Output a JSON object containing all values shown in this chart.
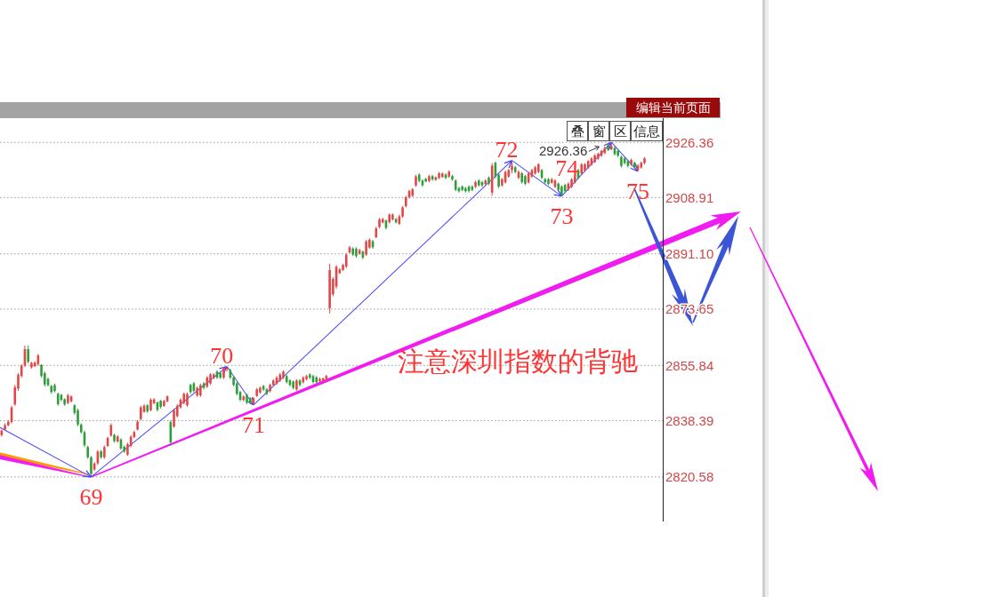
{
  "chart_data": {
    "type": "candlestick",
    "categories": [
      null,
      null,
      null,
      null,
      null,
      null,
      null,
      null,
      null,
      null,
      null,
      null,
      null,
      null,
      null,
      null,
      null,
      null,
      null,
      null,
      null,
      null,
      null,
      null,
      null,
      null,
      null,
      null,
      null,
      null,
      null,
      null,
      null,
      null,
      null,
      null,
      null,
      null,
      null,
      null,
      null,
      null,
      null,
      null,
      null,
      null,
      null,
      null,
      null,
      null,
      null,
      null,
      null,
      null,
      null,
      null,
      null,
      null,
      null,
      null,
      null,
      null,
      null,
      null,
      null,
      null,
      null,
      null,
      null,
      null,
      null,
      null,
      null,
      null,
      null,
      null,
      null,
      null,
      null,
      null,
      null,
      null,
      null,
      null,
      null,
      null,
      null,
      null,
      null,
      null,
      null,
      null,
      null,
      null,
      null,
      null,
      null,
      null,
      null,
      null,
      null,
      null,
      null,
      null,
      null,
      null,
      null,
      null,
      null,
      null,
      null,
      null,
      null,
      null,
      null,
      null,
      null,
      null,
      null,
      null,
      null,
      null,
      null,
      null,
      null,
      null,
      null,
      null,
      null,
      null,
      null,
      null,
      null,
      null,
      null,
      null,
      null,
      null,
      null,
      null,
      null,
      null,
      null,
      null,
      null,
      null,
      null,
      null,
      null,
      null,
      null,
      null,
      null,
      null,
      null,
      null,
      null,
      null,
      null,
      null,
      null,
      null,
      null,
      null,
      null,
      null,
      null,
      null,
      null,
      null,
      null,
      null,
      null,
      null,
      null,
      null,
      null,
      null,
      null,
      null,
      null,
      null,
      null,
      null,
      null,
      null,
      null,
      null,
      null,
      null,
      null,
      null,
      null,
      null,
      null,
      null,
      null,
      null,
      null,
      null
    ],
    "ohlc": [
      [
        2833.8,
        2835.6,
        2833.3,
        2835.2
      ],
      [
        2835.6,
        2837.5,
        2835.2,
        2837.0
      ],
      [
        2836.9,
        2838.5,
        2836.6,
        2838.0
      ],
      [
        2837.9,
        2843.1,
        2837.5,
        2842.6
      ],
      [
        2843.5,
        2849.7,
        2843.1,
        2849.0
      ],
      [
        2848.5,
        2853.4,
        2847.8,
        2852.9
      ],
      [
        2852.5,
        2856.2,
        2852.0,
        2855.8
      ],
      [
        2855.8,
        2862.1,
        2855.3,
        2861.0
      ],
      [
        2861.0,
        2862.1,
        2856.5,
        2857.0
      ],
      [
        2855.2,
        2857.0,
        2854.8,
        2856.6
      ],
      [
        2855.6,
        2857.2,
        2855.3,
        2856.8
      ],
      [
        2856.2,
        2859.5,
        2855.7,
        2859.0
      ],
      [
        2856.0,
        2856.2,
        2852.0,
        2852.5
      ],
      [
        2853.4,
        2853.9,
        2849.2,
        2849.8
      ],
      [
        2851.6,
        2852.0,
        2849.2,
        2849.6
      ],
      [
        2849.3,
        2849.7,
        2846.9,
        2847.4
      ],
      [
        2849.6,
        2850.1,
        2847.3,
        2847.8
      ],
      [
        2846.9,
        2847.3,
        2843.1,
        2843.6
      ],
      [
        2846.5,
        2846.9,
        2844.5,
        2845.0
      ],
      [
        2845.1,
        2845.5,
        2843.1,
        2843.5
      ],
      [
        2844.0,
        2846.9,
        2843.6,
        2846.4
      ],
      [
        2844.5,
        2846.4,
        2844.1,
        2846.0
      ],
      [
        2843.2,
        2843.6,
        2840.3,
        2840.8
      ],
      [
        2841.7,
        2842.2,
        2836.6,
        2837.2
      ],
      [
        2837.1,
        2837.5,
        2834.2,
        2834.7
      ],
      [
        2834.7,
        2835.2,
        2830.0,
        2830.6
      ],
      [
        2830.0,
        2830.5,
        2826.3,
        2826.8
      ],
      [
        2826.8,
        2827.2,
        2820.58,
        2821.5
      ],
      [
        2822.9,
        2825.3,
        2822.5,
        2824.8
      ],
      [
        2824.9,
        2829.1,
        2824.4,
        2828.6
      ],
      [
        2828.7,
        2829.1,
        2826.3,
        2826.8
      ],
      [
        2826.8,
        2830.5,
        2826.3,
        2830.0
      ],
      [
        2830.4,
        2833.3,
        2830.0,
        2832.9
      ],
      [
        2833.7,
        2837.5,
        2833.3,
        2837.0
      ],
      [
        2833.9,
        2834.2,
        2831.4,
        2831.9
      ],
      [
        2831.8,
        2833.8,
        2831.4,
        2833.4
      ],
      [
        2832.4,
        2832.8,
        2829.1,
        2829.6
      ],
      [
        2830.1,
        2830.5,
        2828.2,
        2828.6
      ],
      [
        2827.6,
        2831.4,
        2827.2,
        2830.9
      ],
      [
        2830.4,
        2833.8,
        2830.0,
        2833.3
      ],
      [
        2833.2,
        2835.2,
        2832.8,
        2834.8
      ],
      [
        2835.6,
        2838.5,
        2835.2,
        2838.0
      ],
      [
        2838.9,
        2843.1,
        2838.5,
        2842.6
      ],
      [
        2841.2,
        2843.6,
        2840.8,
        2843.1
      ],
      [
        2843.2,
        2843.6,
        2840.8,
        2841.3
      ],
      [
        2841.7,
        2845.5,
        2841.3,
        2845.0
      ],
      [
        2843.9,
        2845.5,
        2843.6,
        2845.1
      ],
      [
        2844.1,
        2844.5,
        2841.3,
        2841.8
      ],
      [
        2844.6,
        2845.0,
        2842.2,
        2842.7
      ],
      [
        2843.0,
        2845.0,
        2842.7,
        2844.6
      ],
      [
        2844.5,
        2846.4,
        2844.1,
        2846.0
      ],
      [
        2837.9,
        2838.5,
        2830.4,
        2831.5
      ],
      [
        2836.5,
        2842.2,
        2836.1,
        2841.7
      ],
      [
        2839.8,
        2843.6,
        2839.4,
        2843.1
      ],
      [
        2842.6,
        2845.5,
        2842.2,
        2845.0
      ],
      [
        2844.0,
        2847.3,
        2843.6,
        2846.9
      ],
      [
        2843.2,
        2847.3,
        2842.7,
        2846.8
      ],
      [
        2849.7,
        2850.1,
        2846.9,
        2847.4
      ],
      [
        2850.2,
        2850.6,
        2847.3,
        2847.8
      ],
      [
        2846.3,
        2849.2,
        2845.9,
        2848.8
      ],
      [
        2846.4,
        2850.1,
        2845.9,
        2849.6
      ],
      [
        2850.2,
        2850.6,
        2848.3,
        2848.8
      ],
      [
        2849.1,
        2852.5,
        2848.7,
        2852.0
      ],
      [
        2850.1,
        2853.4,
        2849.7,
        2853.0
      ],
      [
        2851.9,
        2853.4,
        2851.5,
        2853.0
      ],
      [
        2853.9,
        2854.3,
        2851.5,
        2852.0
      ],
      [
        2853.5,
        2853.9,
        2851.5,
        2852.0
      ],
      [
        2852.0,
        2855.2,
        2851.5,
        2855.0
      ],
      [
        2854.6,
        2855.5,
        2853.9,
        2855.1
      ],
      [
        2854.4,
        2854.8,
        2851.5,
        2852.0
      ],
      [
        2852.1,
        2852.5,
        2849.2,
        2849.7
      ],
      [
        2850.2,
        2850.6,
        2846.4,
        2846.9
      ],
      [
        2847.4,
        2847.8,
        2844.5,
        2845.0
      ],
      [
        2844.9,
        2846.4,
        2844.5,
        2846.0
      ],
      [
        2846.5,
        2846.9,
        2843.6,
        2844.1
      ],
      [
        2845.5,
        2845.9,
        2843.6,
        2844.0
      ],
      [
        2843.8,
        2845.9,
        2843.3,
        2845.5
      ],
      [
        2846.2,
        2848.7,
        2845.9,
        2848.3
      ],
      [
        2847.3,
        2849.2,
        2846.9,
        2848.8
      ],
      [
        2849.3,
        2849.7,
        2847.8,
        2848.2
      ],
      [
        2848.3,
        2848.7,
        2846.4,
        2846.9
      ],
      [
        2847.7,
        2850.1,
        2847.3,
        2849.7
      ],
      [
        2849.6,
        2851.5,
        2849.2,
        2851.1
      ],
      [
        2850.1,
        2852.5,
        2849.7,
        2852.0
      ],
      [
        2851.0,
        2853.4,
        2850.6,
        2853.0
      ],
      [
        2852.0,
        2854.3,
        2851.5,
        2853.9
      ],
      [
        2852.5,
        2852.9,
        2850.1,
        2850.6
      ],
      [
        2851.1,
        2851.5,
        2849.2,
        2849.7
      ],
      [
        2850.7,
        2851.1,
        2848.3,
        2848.8
      ],
      [
        2848.3,
        2851.5,
        2847.8,
        2851.1
      ],
      [
        2851.1,
        2851.5,
        2849.2,
        2849.7
      ],
      [
        2850.5,
        2852.5,
        2850.1,
        2852.0
      ],
      [
        2851.5,
        2852.9,
        2851.1,
        2852.5
      ],
      [
        2853.0,
        2853.4,
        2851.5,
        2852.0
      ],
      [
        2852.5,
        2852.9,
        2850.1,
        2850.6
      ],
      [
        2852.1,
        2852.5,
        2850.1,
        2850.5
      ],
      [
        2850.9,
        2852.0,
        2850.6,
        2851.6
      ],
      [
        2851.0,
        2852.0,
        2850.6,
        2851.7
      ],
      [
        2851.5,
        2852.9,
        2851.1,
        2852.5
      ],
      [
        2874.0,
        2888.0,
        2872.3,
        2886.0
      ],
      [
        2878.3,
        2883.8,
        2877.7,
        2883.2
      ],
      [
        2880.8,
        2887.6,
        2880.1,
        2887.0
      ],
      [
        2885.0,
        2886.6,
        2884.7,
        2886.2
      ],
      [
        2886.0,
        2888.0,
        2885.7,
        2887.6
      ],
      [
        2887.1,
        2891.3,
        2886.6,
        2890.8
      ],
      [
        2891.6,
        2893.6,
        2891.3,
        2893.2
      ],
      [
        2892.8,
        2893.2,
        2890.4,
        2890.9
      ],
      [
        2892.7,
        2893.2,
        2889.9,
        2890.4
      ],
      [
        2891.1,
        2892.7,
        2890.8,
        2892.3
      ],
      [
        2891.8,
        2892.2,
        2889.4,
        2889.9
      ],
      [
        2890.9,
        2895.5,
        2890.4,
        2895.0
      ],
      [
        2893.1,
        2896.0,
        2892.7,
        2895.6
      ],
      [
        2895.1,
        2895.5,
        2892.7,
        2893.2
      ],
      [
        2896.4,
        2899.7,
        2896.0,
        2899.2
      ],
      [
        2899.6,
        2902.5,
        2899.2,
        2902.0
      ],
      [
        2901.0,
        2902.5,
        2900.7,
        2902.1
      ],
      [
        2901.6,
        2902.0,
        2898.8,
        2899.3
      ],
      [
        2901.1,
        2903.9,
        2900.7,
        2903.5
      ],
      [
        2902.0,
        2903.9,
        2901.6,
        2903.5
      ],
      [
        2902.1,
        2902.5,
        2900.7,
        2901.1
      ],
      [
        2900.6,
        2903.5,
        2900.2,
        2903.0
      ],
      [
        2902.9,
        2906.3,
        2902.5,
        2905.8
      ],
      [
        2906.2,
        2909.5,
        2905.8,
        2909.0
      ],
      [
        2909.0,
        2911.4,
        2908.6,
        2911.0
      ],
      [
        2909.5,
        2911.9,
        2909.1,
        2911.5
      ],
      [
        2912.7,
        2916.1,
        2912.3,
        2915.6
      ],
      [
        2916.2,
        2916.6,
        2913.7,
        2914.2
      ],
      [
        2914.3,
        2914.7,
        2912.3,
        2912.8
      ],
      [
        2914.8,
        2915.1,
        2913.7,
        2914.0
      ],
      [
        2914.1,
        2916.1,
        2913.7,
        2915.7
      ],
      [
        2915.7,
        2916.1,
        2914.2,
        2914.6
      ],
      [
        2914.5,
        2915.6,
        2914.2,
        2915.3
      ],
      [
        2915.1,
        2917.0,
        2914.7,
        2916.6
      ],
      [
        2915.4,
        2916.8,
        2915.1,
        2916.5
      ],
      [
        2916.2,
        2916.6,
        2914.7,
        2915.1
      ],
      [
        2915.5,
        2917.5,
        2915.1,
        2917.1
      ],
      [
        2915.7,
        2916.1,
        2914.2,
        2914.6
      ],
      [
        2914.3,
        2914.7,
        2910.9,
        2911.4
      ],
      [
        2911.9,
        2912.3,
        2910.5,
        2910.9
      ],
      [
        2912.4,
        2912.8,
        2910.9,
        2911.3
      ],
      [
        2911.9,
        2912.3,
        2910.5,
        2910.9
      ],
      [
        2912.4,
        2912.8,
        2910.5,
        2911.0
      ],
      [
        2912.4,
        2912.8,
        2910.9,
        2911.3
      ],
      [
        2912.3,
        2914.2,
        2911.9,
        2913.8
      ],
      [
        2914.3,
        2914.7,
        2912.3,
        2912.8
      ],
      [
        2913.8,
        2914.2,
        2912.3,
        2912.7
      ],
      [
        2913.2,
        2914.7,
        2912.8,
        2914.3
      ],
      [
        2915.2,
        2915.6,
        2912.8,
        2913.3
      ],
      [
        2910.5,
        2919.8,
        2909.5,
        2919.0
      ],
      [
        2919.9,
        2920.3,
        2915.0,
        2915.5
      ],
      [
        2916.2,
        2916.6,
        2911.9,
        2912.4
      ],
      [
        2912.7,
        2915.1,
        2912.3,
        2914.7
      ],
      [
        2913.7,
        2917.5,
        2913.3,
        2917.0
      ],
      [
        2915.5,
        2918.0,
        2915.1,
        2917.6
      ],
      [
        2917.6,
        2920.6,
        2916.6,
        2919.0
      ],
      [
        2918.5,
        2918.9,
        2916.6,
        2917.0
      ],
      [
        2915.1,
        2917.5,
        2914.7,
        2917.0
      ],
      [
        2916.6,
        2917.0,
        2913.3,
        2913.8
      ],
      [
        2915.7,
        2916.1,
        2912.8,
        2913.3
      ],
      [
        2913.7,
        2917.0,
        2913.3,
        2916.6
      ],
      [
        2915.5,
        2918.0,
        2915.1,
        2917.6
      ],
      [
        2916.5,
        2918.9,
        2916.1,
        2918.5
      ],
      [
        2917.0,
        2919.8,
        2916.6,
        2919.4
      ],
      [
        2917.6,
        2918.0,
        2914.7,
        2915.2
      ],
      [
        2914.7,
        2915.1,
        2913.3,
        2913.7
      ],
      [
        2914.7,
        2915.1,
        2912.8,
        2913.2
      ],
      [
        2913.6,
        2915.1,
        2913.3,
        2914.7
      ],
      [
        2912.3,
        2914.7,
        2911.9,
        2914.3
      ],
      [
        2913.3,
        2913.7,
        2911.0,
        2911.4
      ],
      [
        2912.4,
        2912.8,
        2909.3,
        2909.8
      ],
      [
        2912.9,
        2913.3,
        2910.5,
        2911.0
      ],
      [
        2911.4,
        2913.7,
        2911.0,
        2913.3
      ],
      [
        2912.3,
        2915.1,
        2911.9,
        2914.7
      ],
      [
        2913.7,
        2916.1,
        2913.3,
        2915.7
      ],
      [
        2917.6,
        2918.0,
        2914.7,
        2915.1
      ],
      [
        2916.5,
        2919.8,
        2916.1,
        2919.4
      ],
      [
        2917.4,
        2919.8,
        2917.0,
        2919.4
      ],
      [
        2918.4,
        2920.8,
        2918.0,
        2920.4
      ],
      [
        2919.3,
        2921.7,
        2918.9,
        2921.3
      ],
      [
        2920.2,
        2922.6,
        2919.8,
        2922.2
      ],
      [
        2921.2,
        2923.1,
        2920.8,
        2922.7
      ],
      [
        2922.1,
        2924.0,
        2921.7,
        2923.6
      ],
      [
        2923.0,
        2925.0,
        2922.6,
        2924.6
      ],
      [
        2925.4,
        2925.9,
        2923.6,
        2924.0
      ],
      [
        2924.2,
        2926.36,
        2923.8,
        2925.2
      ],
      [
        2924.6,
        2925.0,
        2922.2,
        2922.6
      ],
      [
        2923.6,
        2924.0,
        2921.7,
        2922.1
      ],
      [
        2921.8,
        2922.2,
        2918.4,
        2918.9
      ],
      [
        2921.3,
        2921.7,
        2919.4,
        2919.8
      ],
      [
        2920.4,
        2920.8,
        2918.4,
        2918.9
      ],
      [
        2919.3,
        2921.2,
        2918.9,
        2920.8
      ],
      [
        2919.9,
        2920.3,
        2918.0,
        2918.4
      ],
      [
        2917.6,
        2919.4,
        2917.2,
        2919.0
      ],
      [
        2918.4,
        2920.3,
        2918.0,
        2919.9
      ],
      [
        2919.8,
        2921.7,
        2919.4,
        2921.3
      ],
      null,
      null,
      null,
      null,
      null
    ],
    "ylim": [
      2806.5,
      2934.0
    ],
    "yticks": [
      2820.58,
      2838.39,
      2855.84,
      2873.65,
      {
        "value": 2891.1,
        "label": "2891.10"
      },
      2908.91,
      2926.36
    ],
    "grid": "y",
    "tick_labels": "y",
    "annotations": [
      "注意深圳指数的背驰",
      "编辑当前页面",
      "叠",
      "窗",
      "区",
      "信息",
      "2926.36",
      "69",
      "70",
      "71",
      "72",
      "73",
      "74",
      "75"
    ]
  }
}
